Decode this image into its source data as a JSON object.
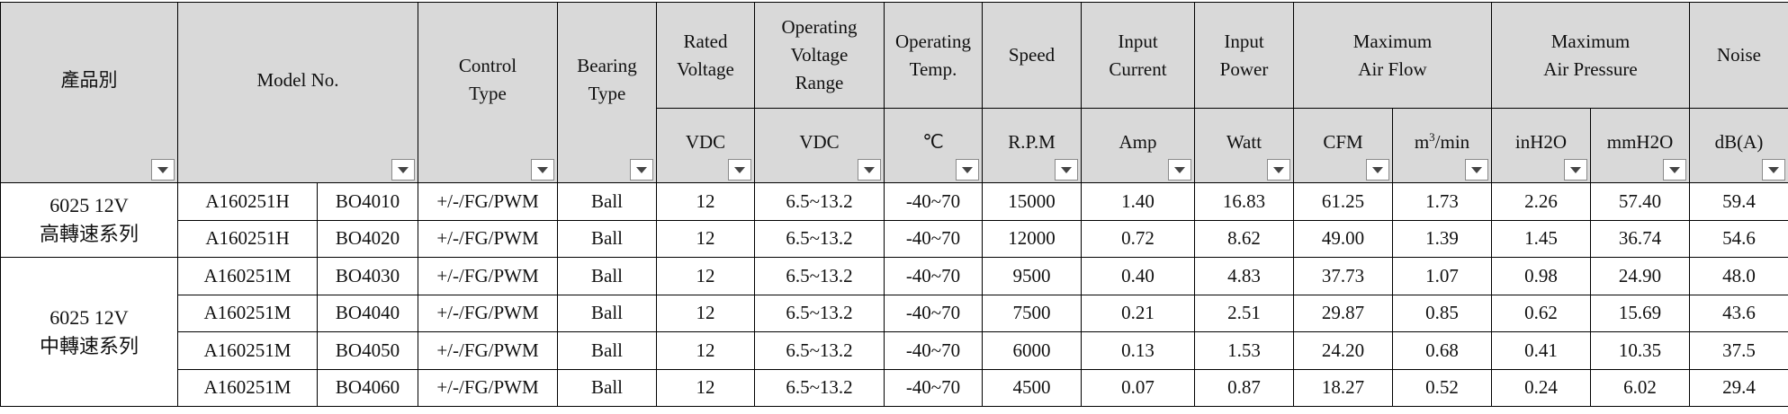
{
  "headers": {
    "product_series": "產品別",
    "model_no": "Model No.",
    "control_type": [
      "Control",
      "Type"
    ],
    "bearing_type": [
      "Bearing",
      "Type"
    ],
    "rated_voltage": [
      "Rated",
      "Voltage"
    ],
    "operating_voltage_range": [
      "Operating",
      "Voltage",
      "Range"
    ],
    "operating_temp": [
      "Operating",
      "Temp."
    ],
    "speed": "Speed",
    "input_current": [
      "Input",
      "Current"
    ],
    "input_power": [
      "Input",
      "Power"
    ],
    "max_air_flow": [
      "Maximum",
      "Air Flow"
    ],
    "max_air_pressure": [
      "Maximum",
      "Air Pressure"
    ],
    "noise": "Noise"
  },
  "units": {
    "rated_voltage": "VDC",
    "operating_voltage_range": "VDC",
    "operating_temp": "℃",
    "speed": "R.P.M",
    "input_current": "Amp",
    "input_power": "Watt",
    "air_flow_cfm": "CFM",
    "air_flow_m3": "m",
    "air_flow_m3_sup": "3",
    "air_flow_m3_tail": "/min",
    "pressure_inh2o": "inH2O",
    "pressure_mmh2o": "mmH2O",
    "noise": "dB(A)"
  },
  "groups": [
    {
      "series_line1": "6025 12V",
      "series_line2": "高轉速系列"
    },
    {
      "series_line1": "6025 12V",
      "series_line2": "中轉速系列"
    }
  ],
  "rows": [
    [
      "A160251H",
      "BO4010",
      "+/-/FG/PWM",
      "Ball",
      "12",
      "6.5~13.2",
      "-40~70",
      "15000",
      "1.40",
      "16.83",
      "61.25",
      "1.73",
      "2.26",
      "57.40",
      "59.4"
    ],
    [
      "A160251H",
      "BO4020",
      "+/-/FG/PWM",
      "Ball",
      "12",
      "6.5~13.2",
      "-40~70",
      "12000",
      "0.72",
      "8.62",
      "49.00",
      "1.39",
      "1.45",
      "36.74",
      "54.6"
    ],
    [
      "A160251M",
      "BO4030",
      "+/-/FG/PWM",
      "Ball",
      "12",
      "6.5~13.2",
      "-40~70",
      "9500",
      "0.40",
      "4.83",
      "37.73",
      "1.07",
      "0.98",
      "24.90",
      "48.0"
    ],
    [
      "A160251M",
      "BO4040",
      "+/-/FG/PWM",
      "Ball",
      "12",
      "6.5~13.2",
      "-40~70",
      "7500",
      "0.21",
      "2.51",
      "29.87",
      "0.85",
      "0.62",
      "15.69",
      "43.6"
    ],
    [
      "A160251M",
      "BO4050",
      "+/-/FG/PWM",
      "Ball",
      "12",
      "6.5~13.2",
      "-40~70",
      "6000",
      "0.13",
      "1.53",
      "24.20",
      "0.68",
      "0.41",
      "10.35",
      "37.5"
    ],
    [
      "A160251M",
      "BO4060",
      "+/-/FG/PWM",
      "Ball",
      "12",
      "6.5~13.2",
      "-40~70",
      "4500",
      "0.07",
      "0.87",
      "18.27",
      "0.52",
      "0.24",
      "6.02",
      "29.4"
    ]
  ],
  "colors": {
    "header_bg": "#d9d9d9",
    "grid": "#000000",
    "filter_button_bg": "#ffffff"
  },
  "filter_icon": "dropdown-arrow-icon"
}
